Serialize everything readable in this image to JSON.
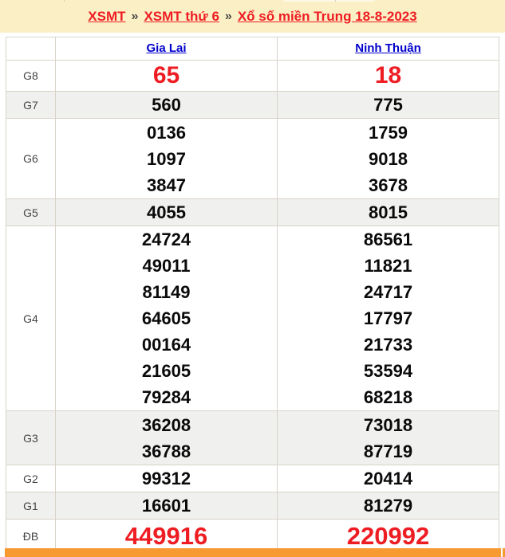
{
  "colors": {
    "banner_bg": "#fbf0c5",
    "accent_red": "#ee1d23",
    "link_blue": "#0000cc",
    "alt_row_bg": "#f0f0ef",
    "border": "#d8d3c9",
    "orange_bar": "#f79a32"
  },
  "breadcrumb": {
    "sep": "»",
    "link1": "XSMT",
    "link2": "XSMT thứ 6",
    "link3": "Xổ số miền Trung 18-8-2023"
  },
  "table": {
    "col1": "Gia Lai",
    "col2": "Ninh Thuận",
    "rows": [
      {
        "label": "G8",
        "gl": [
          "65"
        ],
        "nt": [
          "18"
        ]
      },
      {
        "label": "G7",
        "gl": [
          "560"
        ],
        "nt": [
          "775"
        ]
      },
      {
        "label": "G6",
        "gl": [
          "0136",
          "1097",
          "3847"
        ],
        "nt": [
          "1759",
          "9018",
          "3678"
        ]
      },
      {
        "label": "G5",
        "gl": [
          "4055"
        ],
        "nt": [
          "8015"
        ]
      },
      {
        "label": "G4",
        "gl": [
          "24724",
          "49011",
          "81149",
          "64605",
          "00164",
          "21605",
          "79284"
        ],
        "nt": [
          "86561",
          "11821",
          "24717",
          "17797",
          "21733",
          "53594",
          "68218"
        ]
      },
      {
        "label": "G3",
        "gl": [
          "36208",
          "36788"
        ],
        "nt": [
          "73018",
          "87719"
        ]
      },
      {
        "label": "G2",
        "gl": [
          "99312"
        ],
        "nt": [
          "20414"
        ]
      },
      {
        "label": "G1",
        "gl": [
          "16601"
        ],
        "nt": [
          "81279"
        ]
      },
      {
        "label": "ĐB",
        "gl": [
          "449916"
        ],
        "nt": [
          "220992"
        ]
      }
    ]
  }
}
